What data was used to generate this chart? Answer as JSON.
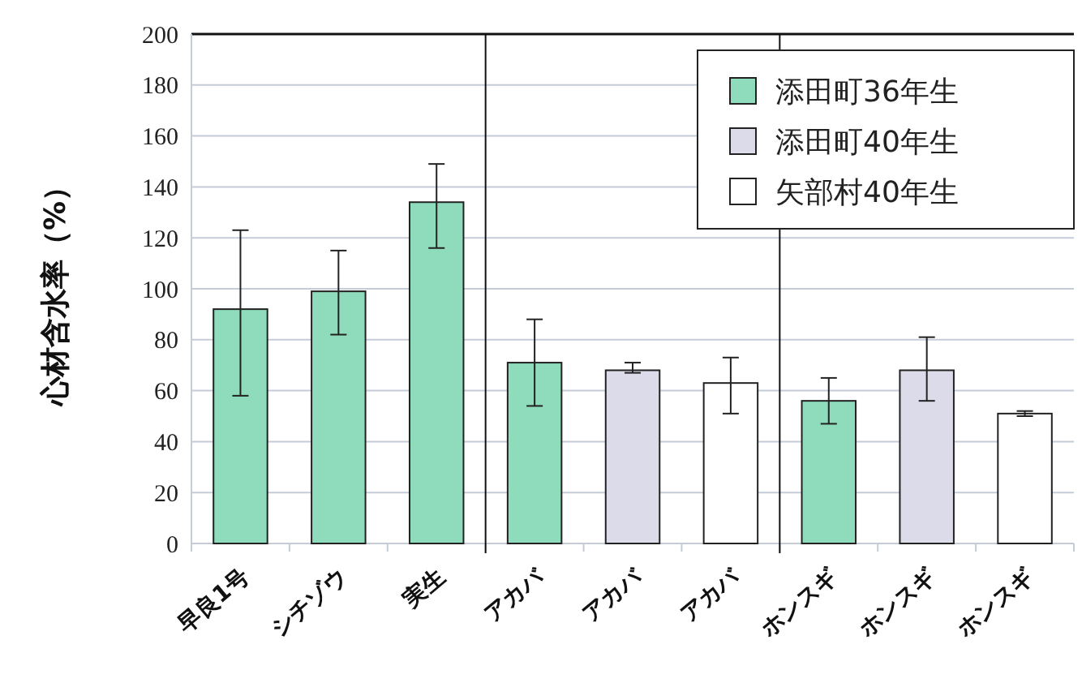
{
  "chart_data": {
    "type": "bar",
    "ylabel": "心材含水率（%）",
    "categories": [
      "早良1号",
      "シチゾウ",
      "実生",
      "アカバ",
      "アカバ",
      "アカバ",
      "ホンスギ",
      "ホンスギ",
      "ホンスギ"
    ],
    "series": [
      {
        "name": "添田町36年生",
        "color": "#8fdcbc",
        "values": [
          92,
          99,
          134,
          71,
          null,
          null,
          56,
          null,
          null
        ],
        "errors": [
          [
            58,
            123
          ],
          [
            82,
            115
          ],
          [
            116,
            149
          ],
          [
            54,
            88
          ],
          null,
          null,
          [
            47,
            65
          ],
          null,
          null
        ]
      },
      {
        "name": "添田町40年生",
        "color": "#dcdbe9",
        "values": [
          null,
          null,
          null,
          null,
          68,
          null,
          null,
          68,
          null
        ],
        "errors": [
          null,
          null,
          null,
          null,
          [
            67,
            71
          ],
          null,
          null,
          [
            56,
            81
          ],
          null
        ]
      },
      {
        "name": "矢部村40年生",
        "color": "#ffffff",
        "values": [
          null,
          null,
          null,
          null,
          null,
          63,
          null,
          null,
          51
        ],
        "errors": [
          null,
          null,
          null,
          null,
          null,
          [
            51,
            73
          ],
          null,
          null,
          [
            50,
            52
          ]
        ]
      }
    ],
    "ylim": [
      0,
      200
    ],
    "yticks": [
      0,
      20,
      40,
      60,
      80,
      100,
      120,
      140,
      160,
      180,
      200
    ],
    "grid": "y",
    "legend": "top right"
  }
}
